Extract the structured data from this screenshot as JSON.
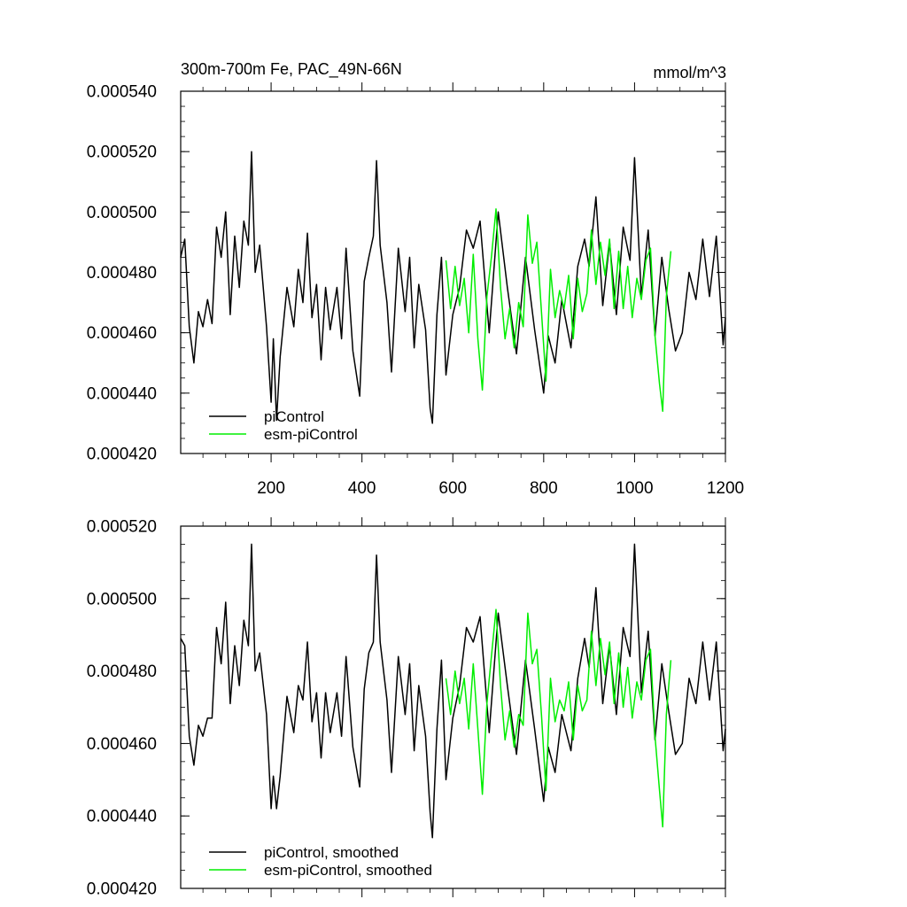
{
  "figure": {
    "title": "300m-700m Fe, PAC_49N-66N",
    "units": "mmol/m^3"
  },
  "chart_data": [
    {
      "type": "line",
      "title": "300m-700m Fe, PAC_49N-66N",
      "units_label": "mmol/m^3",
      "xlabel": "",
      "ylabel": "",
      "xlim": [
        1,
        1200
      ],
      "ylim": [
        0.00042,
        0.00054
      ],
      "x_ticks": [
        200,
        400,
        600,
        800,
        1000,
        1200
      ],
      "x_tick_labels": [
        "200",
        "400",
        "600",
        "800",
        "1000",
        "1200"
      ],
      "y_ticks": [
        0.00042,
        0.00044,
        0.00046,
        0.00048,
        0.0005,
        0.00052,
        0.00054
      ],
      "y_tick_labels": [
        "0.000420",
        "0.000440",
        "0.000460",
        "0.000480",
        "0.000500",
        "0.000520",
        "0.000540"
      ],
      "grid": false,
      "legend_position": "bottom-left",
      "series": [
        {
          "name": "piControl",
          "color": "#000000",
          "x": [
            1,
            10,
            20,
            30,
            40,
            50,
            60,
            70,
            80,
            90,
            100,
            110,
            120,
            130,
            140,
            150,
            157,
            165,
            175,
            190,
            200,
            205,
            212,
            220,
            235,
            250,
            260,
            270,
            280,
            290,
            300,
            310,
            320,
            330,
            345,
            355,
            365,
            380,
            395,
            405,
            415,
            425,
            432,
            440,
            455,
            465,
            480,
            495,
            505,
            515,
            525,
            540,
            550,
            555,
            565,
            575,
            585,
            600,
            615,
            630,
            645,
            660,
            680,
            700,
            720,
            740,
            760,
            780,
            800,
            810,
            825,
            840,
            860,
            875,
            890,
            900,
            915,
            930,
            945,
            960,
            975,
            990,
            1000,
            1015,
            1030,
            1045,
            1060,
            1075,
            1090,
            1105,
            1120,
            1135,
            1150,
            1165,
            1180,
            1195,
            1200
          ],
          "y": [
            0.000485,
            0.000491,
            0.000462,
            0.00045,
            0.000467,
            0.000462,
            0.000471,
            0.000463,
            0.000495,
            0.000485,
            0.0005,
            0.000466,
            0.000492,
            0.000475,
            0.000497,
            0.000489,
            0.00052,
            0.00048,
            0.000489,
            0.000462,
            0.000437,
            0.000458,
            0.000431,
            0.000452,
            0.000475,
            0.000462,
            0.000481,
            0.00047,
            0.000493,
            0.000465,
            0.000476,
            0.000451,
            0.000475,
            0.000461,
            0.000475,
            0.000458,
            0.000488,
            0.000454,
            0.000439,
            0.000477,
            0.000485,
            0.000492,
            0.000517,
            0.000489,
            0.00047,
            0.000447,
            0.000488,
            0.000467,
            0.000485,
            0.000455,
            0.000476,
            0.000461,
            0.000435,
            0.00043,
            0.000466,
            0.000485,
            0.000446,
            0.000466,
            0.000475,
            0.000494,
            0.000488,
            0.000497,
            0.00046,
            0.0005,
            0.000475,
            0.000453,
            0.000485,
            0.000461,
            0.00044,
            0.000459,
            0.00045,
            0.000471,
            0.000455,
            0.000482,
            0.000491,
            0.000482,
            0.000505,
            0.000469,
            0.00049,
            0.000466,
            0.000495,
            0.000484,
            0.000518,
            0.000472,
            0.000494,
            0.000459,
            0.000485,
            0.000468,
            0.000454,
            0.00046,
            0.00048,
            0.000471,
            0.000491,
            0.000472,
            0.000492,
            0.000456,
            0.000465
          ]
        },
        {
          "name": "esm-piControl",
          "color": "#00ee00",
          "x": [
            585,
            595,
            605,
            615,
            625,
            635,
            645,
            655,
            665,
            675,
            685,
            695,
            705,
            715,
            725,
            735,
            745,
            755,
            765,
            775,
            785,
            795,
            805,
            815,
            825,
            835,
            845,
            855,
            865,
            875,
            885,
            895,
            905,
            915,
            925,
            935,
            945,
            955,
            965,
            975,
            985,
            995,
            1005,
            1015,
            1025,
            1035,
            1045,
            1055,
            1062,
            1070,
            1080
          ],
          "y": [
            0.000484,
            0.000468,
            0.000482,
            0.000469,
            0.000478,
            0.00046,
            0.000486,
            0.000458,
            0.000441,
            0.000472,
            0.000485,
            0.000501,
            0.000475,
            0.000458,
            0.000468,
            0.000455,
            0.00047,
            0.000462,
            0.000499,
            0.000483,
            0.00049,
            0.000467,
            0.000444,
            0.000481,
            0.000465,
            0.000474,
            0.000468,
            0.000479,
            0.000458,
            0.000478,
            0.000467,
            0.000473,
            0.000494,
            0.000476,
            0.00049,
            0.000479,
            0.000491,
            0.000468,
            0.000487,
            0.000468,
            0.000482,
            0.000465,
            0.000478,
            0.000471,
            0.000484,
            0.000488,
            0.000459,
            0.000443,
            0.000434,
            0.000472,
            0.000487
          ]
        }
      ]
    },
    {
      "type": "line",
      "title": "",
      "xlabel": "",
      "ylabel": "",
      "xlim": [
        1,
        1200
      ],
      "ylim": [
        0.00042,
        0.00052
      ],
      "x_ticks": [
        200,
        400,
        600,
        800,
        1000,
        1200
      ],
      "x_tick_labels": [],
      "y_ticks": [
        0.00042,
        0.00044,
        0.00046,
        0.00048,
        0.0005,
        0.00052
      ],
      "y_tick_labels": [
        "0.000420",
        "0.000440",
        "0.000460",
        "0.000480",
        "0.000500",
        "0.000520"
      ],
      "grid": false,
      "legend_position": "bottom-left",
      "series": [
        {
          "name": "piControl, smoothed",
          "color": "#000000",
          "x": [
            1,
            10,
            20,
            30,
            40,
            50,
            60,
            70,
            80,
            90,
            100,
            110,
            120,
            130,
            140,
            150,
            157,
            165,
            175,
            190,
            200,
            205,
            212,
            220,
            235,
            250,
            260,
            270,
            280,
            290,
            300,
            310,
            320,
            330,
            345,
            355,
            365,
            380,
            395,
            405,
            415,
            425,
            432,
            440,
            455,
            465,
            480,
            495,
            505,
            515,
            525,
            540,
            550,
            555,
            565,
            575,
            585,
            600,
            615,
            630,
            645,
            660,
            680,
            700,
            720,
            740,
            760,
            780,
            800,
            810,
            825,
            840,
            860,
            875,
            890,
            900,
            915,
            930,
            945,
            960,
            975,
            990,
            1000,
            1015,
            1030,
            1045,
            1060,
            1075,
            1090,
            1105,
            1120,
            1135,
            1150,
            1165,
            1180,
            1195,
            1200
          ],
          "y": [
            0.000489,
            0.000487,
            0.000462,
            0.000454,
            0.000465,
            0.000462,
            0.000467,
            0.000467,
            0.000492,
            0.000482,
            0.000499,
            0.000471,
            0.000487,
            0.000476,
            0.000494,
            0.000487,
            0.000515,
            0.00048,
            0.000485,
            0.000468,
            0.000442,
            0.000451,
            0.000442,
            0.000451,
            0.000473,
            0.000463,
            0.000476,
            0.000472,
            0.000488,
            0.000466,
            0.000474,
            0.000456,
            0.000474,
            0.000463,
            0.000474,
            0.000462,
            0.000484,
            0.000459,
            0.000448,
            0.000475,
            0.000485,
            0.000488,
            0.000512,
            0.000488,
            0.000472,
            0.000452,
            0.000484,
            0.000468,
            0.000482,
            0.000458,
            0.000476,
            0.000462,
            0.000441,
            0.000434,
            0.000464,
            0.000483,
            0.00045,
            0.000467,
            0.000476,
            0.000492,
            0.000488,
            0.000495,
            0.000463,
            0.000496,
            0.000476,
            0.000457,
            0.000483,
            0.000464,
            0.000444,
            0.000459,
            0.000452,
            0.000468,
            0.000458,
            0.000478,
            0.000489,
            0.000481,
            0.000503,
            0.000471,
            0.000487,
            0.000468,
            0.000492,
            0.000484,
            0.000515,
            0.000474,
            0.000491,
            0.000461,
            0.000482,
            0.000469,
            0.000457,
            0.00046,
            0.000478,
            0.000471,
            0.000488,
            0.000472,
            0.000488,
            0.000458,
            0.000464
          ]
        },
        {
          "name": "esm-piControl, smoothed",
          "color": "#00ee00",
          "x": [
            585,
            595,
            605,
            615,
            625,
            635,
            645,
            655,
            665,
            675,
            685,
            695,
            705,
            715,
            725,
            735,
            745,
            755,
            765,
            775,
            785,
            795,
            805,
            815,
            825,
            835,
            845,
            855,
            865,
            875,
            885,
            895,
            905,
            915,
            925,
            935,
            945,
            955,
            965,
            975,
            985,
            995,
            1005,
            1015,
            1025,
            1035,
            1045,
            1055,
            1062,
            1070,
            1080
          ],
          "y": [
            0.000478,
            0.000468,
            0.00048,
            0.000471,
            0.000478,
            0.000464,
            0.000482,
            0.000464,
            0.000446,
            0.000471,
            0.000484,
            0.000497,
            0.000476,
            0.000461,
            0.000469,
            0.000459,
            0.000468,
            0.000465,
            0.000496,
            0.000482,
            0.000486,
            0.000468,
            0.000447,
            0.000478,
            0.000466,
            0.000472,
            0.000469,
            0.000477,
            0.000461,
            0.000476,
            0.000469,
            0.000472,
            0.000491,
            0.000476,
            0.000489,
            0.000479,
            0.000488,
            0.000471,
            0.000485,
            0.00047,
            0.000481,
            0.000467,
            0.000477,
            0.000472,
            0.000483,
            0.000486,
            0.000462,
            0.000447,
            0.000437,
            0.000468,
            0.000483
          ]
        }
      ]
    }
  ]
}
